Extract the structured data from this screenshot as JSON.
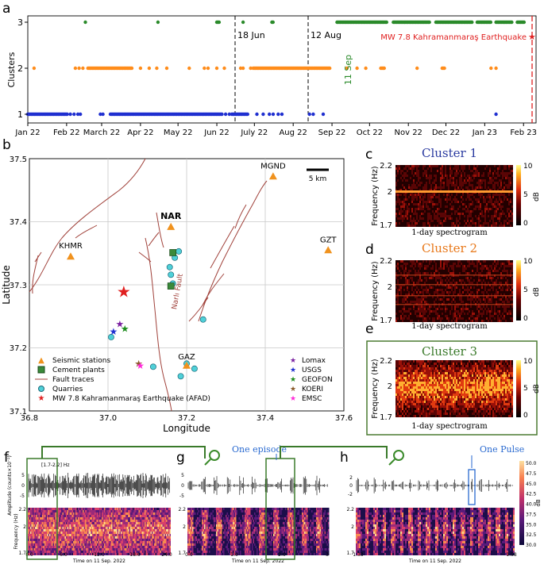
{
  "panel_labels": {
    "a": "a",
    "b": "b",
    "c": "c",
    "d": "d",
    "e": "e",
    "f": "f",
    "g": "g",
    "h": "h"
  },
  "colors": {
    "c1": "#1f2fd0",
    "c2": "#ff8c1a",
    "c3": "#2a8a2a",
    "quake": "#e02020",
    "fault": "#a0413a",
    "quarry": "#4fd0d8",
    "cement": "#3a8a3a",
    "station": "#f0921e"
  },
  "chart_data": [
    {
      "type": "scatter",
      "panel": "a",
      "ylabel": "Clusters",
      "yticks": [
        "1",
        "2",
        "3"
      ],
      "xticks": [
        "Jan 22",
        "Feb 22",
        "March 22",
        "Apr 22",
        "May 22",
        "Jun 22",
        "July 22",
        "Aug 22",
        "Sep 22",
        "Oct 22",
        "Nov 22",
        "Dec 22",
        "Jan 23",
        "Feb 23"
      ],
      "xtick_days": [
        0,
        31,
        59,
        90,
        120,
        151,
        181,
        212,
        243,
        273,
        304,
        334,
        365,
        396
      ],
      "xlim_days": [
        0,
        406
      ],
      "annotations": {
        "jun18": "18 Jun",
        "aug12": "12 Aug",
        "sep11": "11 Sep",
        "quake": "MW 7.8 Kahramanmaraş Earthquake"
      },
      "series": {
        "cluster1": {
          "runs": [
            [
              0,
              32
            ],
            [
              34,
              34
            ],
            [
              37,
              37
            ],
            [
              40,
              40
            ],
            [
              42,
              42
            ],
            [
              58,
              58
            ],
            [
              60,
              60
            ],
            [
              66,
              156
            ],
            [
              158,
              158
            ],
            [
              161,
              161
            ],
            [
              163,
              176
            ],
            [
              183,
              183
            ],
            [
              188,
              188
            ],
            [
              193,
              193
            ],
            [
              196,
              196
            ],
            [
              200,
              200
            ],
            [
              203,
              203
            ],
            [
              225,
              225
            ],
            [
              228,
              228
            ],
            [
              236,
              236
            ],
            [
              374,
              374
            ]
          ]
        },
        "cluster2": {
          "runs": [
            [
              5,
              5
            ],
            [
              38,
              38
            ],
            [
              41,
              41
            ],
            [
              44,
              44
            ],
            [
              48,
              84
            ],
            [
              90,
              90
            ],
            [
              97,
              97
            ],
            [
              103,
              103
            ],
            [
              111,
              111
            ],
            [
              129,
              129
            ],
            [
              141,
              141
            ],
            [
              144,
              144
            ],
            [
              151,
              151
            ],
            [
              157,
              157
            ],
            [
              170,
              170
            ],
            [
              172,
              172
            ],
            [
              178,
              178
            ],
            [
              180,
              242
            ],
            [
              255,
              255
            ],
            [
              263,
              263
            ],
            [
              270,
              270
            ],
            [
              282,
              285
            ],
            [
              311,
              311
            ],
            [
              331,
              333
            ],
            [
              370,
              370
            ],
            [
              374,
              374
            ]
          ]
        },
        "cluster3": {
          "runs": [
            [
              46,
              46
            ],
            [
              104,
              104
            ],
            [
              151,
              153
            ],
            [
              172,
              172
            ],
            [
              195,
              196
            ],
            [
              247,
              287
            ],
            [
              292,
              321
            ],
            [
              326,
              355
            ],
            [
              359,
              370
            ],
            [
              374,
              387
            ],
            [
              391,
              397
            ]
          ]
        }
      }
    },
    {
      "type": "map",
      "panel": "b",
      "xlabel": "Longitude",
      "ylabel": "Latitude",
      "xlim": [
        36.8,
        37.6
      ],
      "ylim": [
        37.1,
        37.5
      ],
      "xticks": [
        "36.8",
        "37.0",
        "37.2",
        "37.4",
        "37.6"
      ],
      "yticks": [
        "37.1",
        "37.2",
        "37.3",
        "37.4",
        "37.5"
      ],
      "scale": "5 km",
      "fault_label": "Narlı Fault",
      "stations": [
        {
          "name": "NAR",
          "lon": 37.16,
          "lat": 37.392
        },
        {
          "name": "MGND",
          "lon": 37.42,
          "lat": 37.472
        },
        {
          "name": "KHMR",
          "lon": 36.905,
          "lat": 37.345
        },
        {
          "name": "GZT",
          "lon": 37.56,
          "lat": 37.355
        },
        {
          "name": "GAZ",
          "lon": 37.2,
          "lat": 37.172
        }
      ],
      "cement_plants": [
        {
          "lon": 37.165,
          "lat": 37.351
        },
        {
          "lon": 37.16,
          "lat": 37.298
        }
      ],
      "quarries": [
        {
          "lon": 37.18,
          "lat": 37.353
        },
        {
          "lon": 37.17,
          "lat": 37.343
        },
        {
          "lon": 37.157,
          "lat": 37.328
        },
        {
          "lon": 37.16,
          "lat": 37.316
        },
        {
          "lon": 37.165,
          "lat": 37.302
        },
        {
          "lon": 37.242,
          "lat": 37.245
        },
        {
          "lon": 37.2,
          "lat": 37.175
        },
        {
          "lon": 37.22,
          "lat": 37.167
        },
        {
          "lon": 37.115,
          "lat": 37.17
        },
        {
          "lon": 37.185,
          "lat": 37.155
        },
        {
          "lon": 37.008,
          "lat": 37.217
        }
      ],
      "epicenter_afad": {
        "lon": 37.04,
        "lat": 37.289
      },
      "epicenters": [
        {
          "agency": "Lomax",
          "lon": 37.03,
          "lat": 37.238
        },
        {
          "agency": "USGS",
          "lon": 37.014,
          "lat": 37.226
        },
        {
          "agency": "GEOFON",
          "lon": 37.043,
          "lat": 37.23
        },
        {
          "agency": "KOERI",
          "lon": 37.078,
          "lat": 37.175
        },
        {
          "agency": "EMSC",
          "lon": 37.082,
          "lat": 37.172
        }
      ],
      "legend_left": [
        "Seismic stations",
        "Cement plants",
        "Fault traces",
        "Quarries",
        "MW 7.8 Kahramanmaraş Earthquake (AFAD)"
      ],
      "legend_right": [
        "Lomax",
        "USGS",
        "GEOFON",
        "KOERI",
        "EMSC"
      ]
    },
    {
      "type": "heatmap",
      "panel": "c-e",
      "titles": [
        "Cluster 1",
        "Cluster 2",
        "Cluster 3"
      ],
      "ylabel": "Frequency (Hz)",
      "yticks": [
        "2.2",
        "2",
        "1.7"
      ],
      "xlabel": "1-day spectrogram",
      "colorbar_ticks": [
        "10",
        "5",
        "0"
      ],
      "colorbar_label": "dB"
    },
    {
      "type": "line",
      "panel": "f-h",
      "amp_label": "Amplitude (counts×10⁻²)",
      "freq_label": "Frequency (Hz)",
      "band_label": "[1.7-2.2] Hz",
      "f_xticks": [
        "0.0",
        "6:0",
        "12:0",
        "18:0",
        "24:0"
      ],
      "g_xticks": [
        "0:0",
        "1:0",
        "2:0",
        "3"
      ],
      "h_xticks": [
        "1:33",
        "1:58"
      ],
      "xlabel": "Time on 11 Sep. 2022",
      "one_episode": "One episode",
      "one_pulse": "One Pulse",
      "colorbar_ticks": [
        "50.0",
        "47.5",
        "45.0",
        "42.5",
        "40.0",
        "37.5",
        "35.0",
        "32.5",
        "30.0"
      ],
      "colorbar_label": "dB",
      "amp_ticks": [
        "5",
        "0",
        "-5"
      ],
      "freq_ticks": [
        "2.2",
        "2",
        "1.7"
      ]
    }
  ]
}
